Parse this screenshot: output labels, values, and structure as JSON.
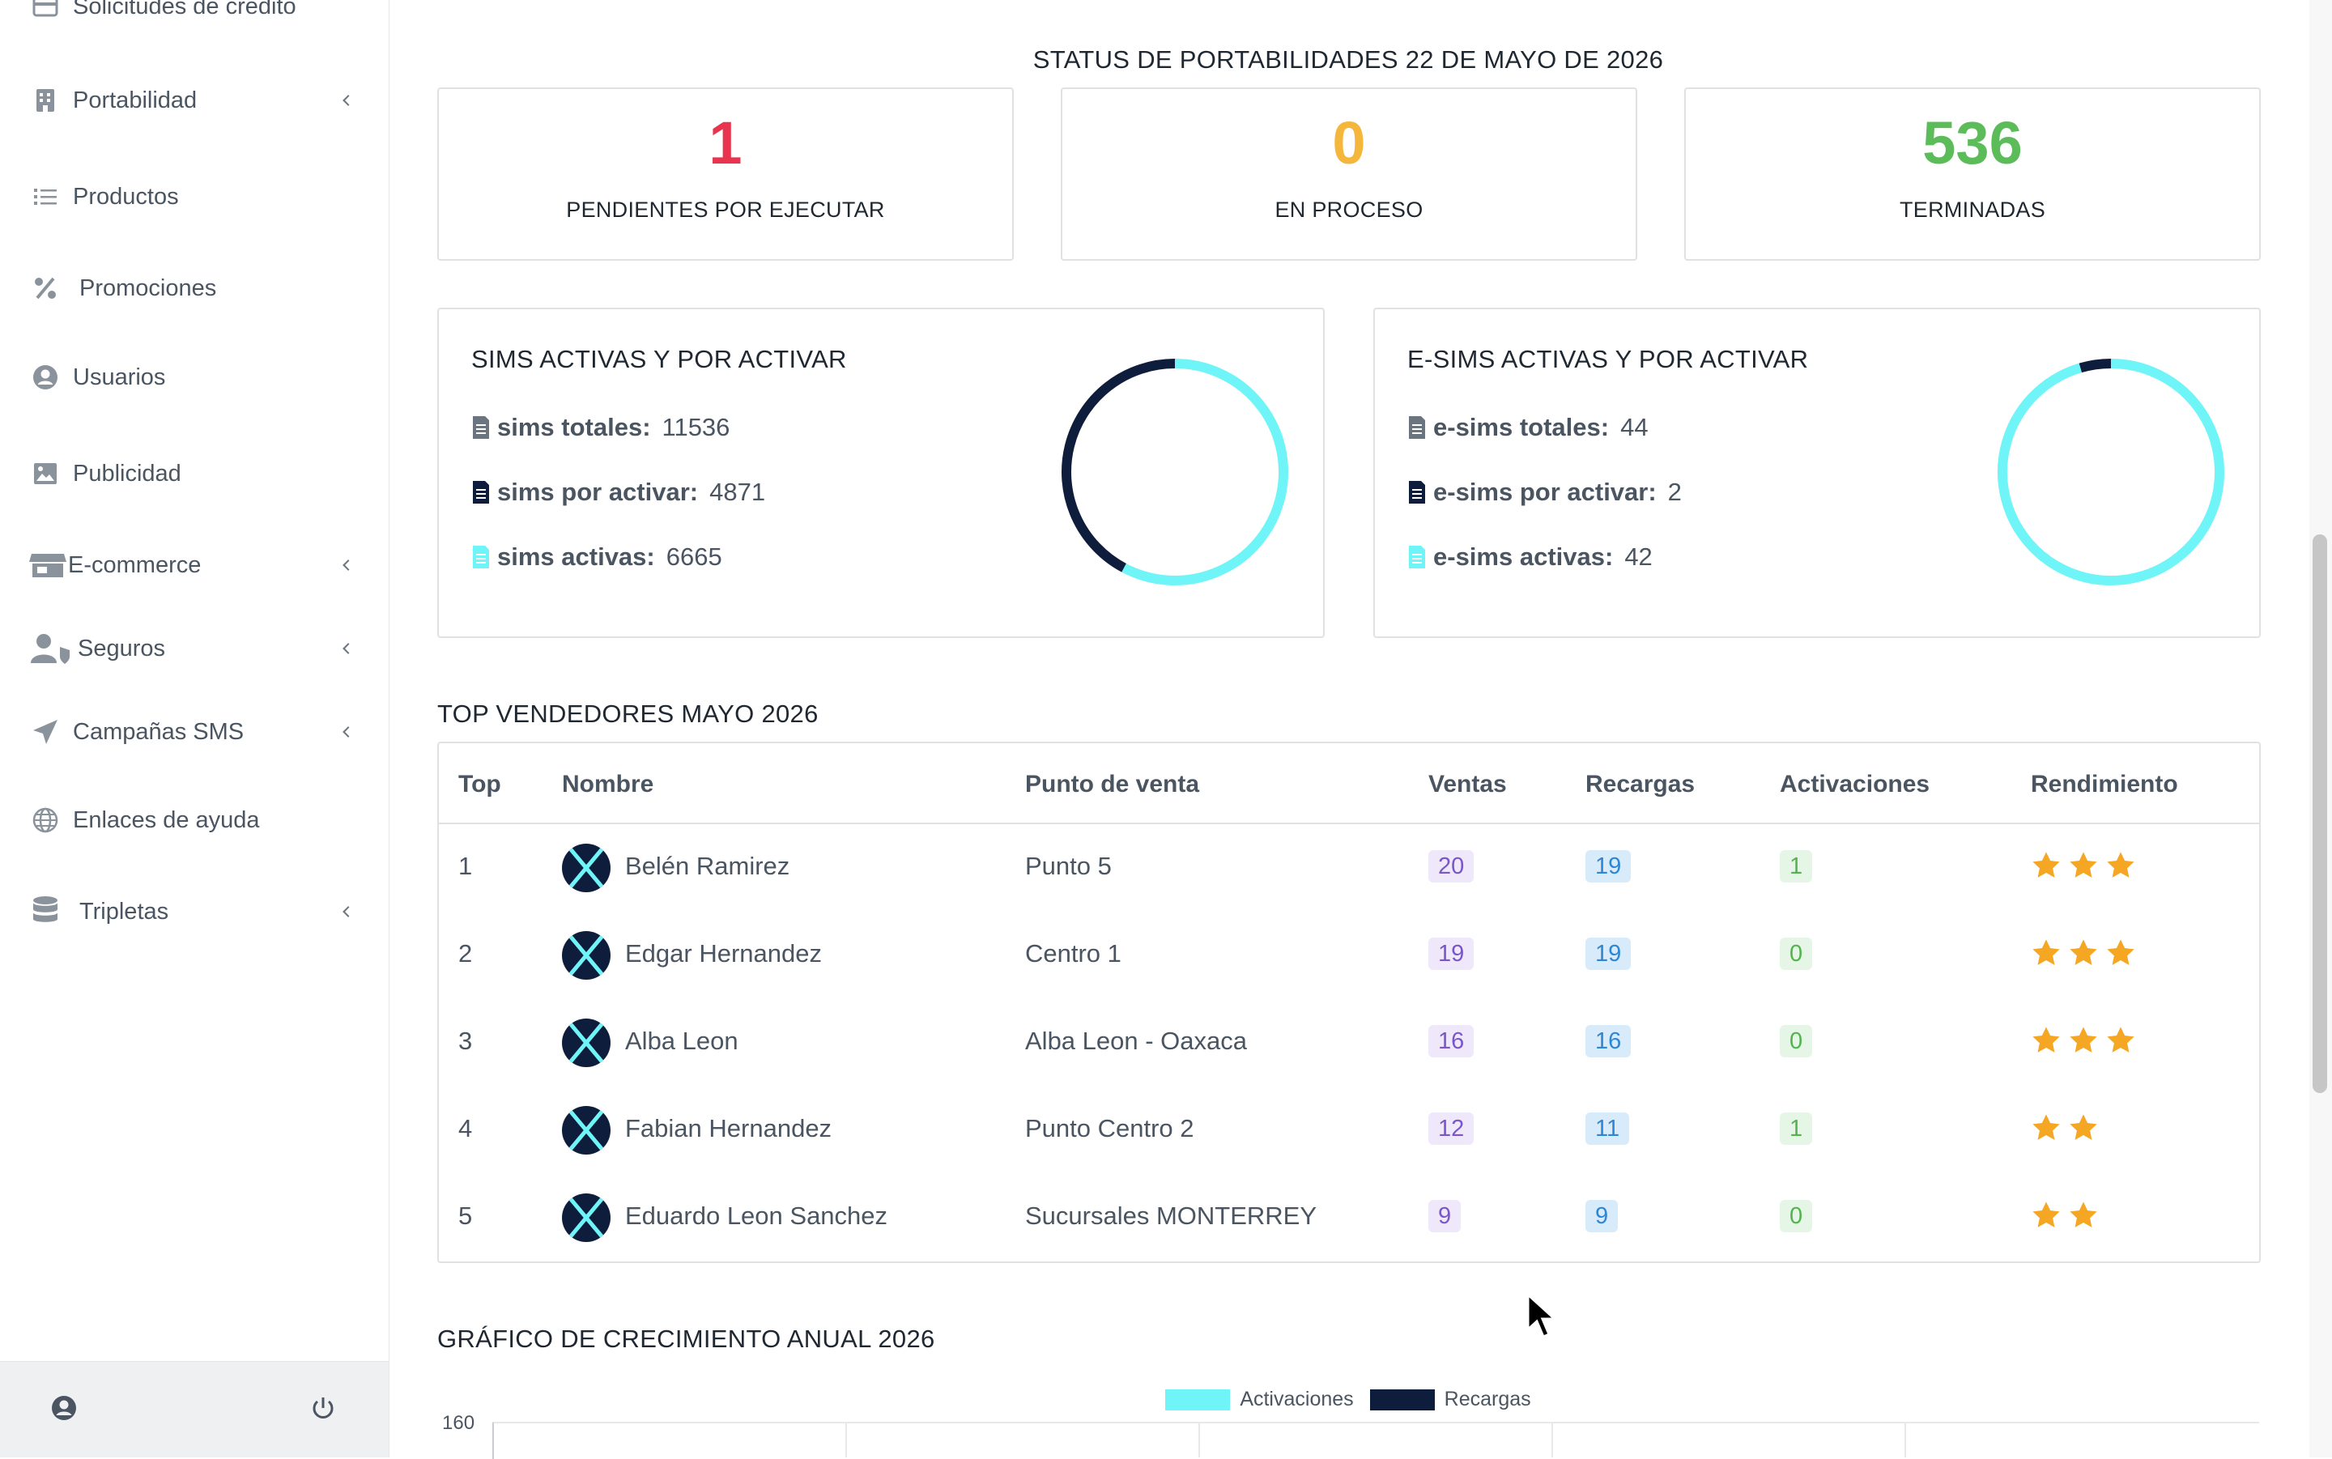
{
  "sidebar": {
    "partial_item": "Solicitudes de crédito",
    "items": [
      {
        "label": "Portabilidad",
        "icon": "building-icon",
        "has_submenu": true
      },
      {
        "label": "Productos",
        "icon": "list-icon",
        "has_submenu": false
      },
      {
        "label": "Promociones",
        "icon": "percent-icon",
        "has_submenu": false
      },
      {
        "label": "Usuarios",
        "icon": "user-circle-icon",
        "has_submenu": false
      },
      {
        "label": "Publicidad",
        "icon": "image-icon",
        "has_submenu": false
      },
      {
        "label": "E-commerce",
        "icon": "store-icon",
        "has_submenu": true
      },
      {
        "label": "Seguros",
        "icon": "user-shield-icon",
        "has_submenu": true
      },
      {
        "label": "Campañas SMS",
        "icon": "paper-plane-icon",
        "has_submenu": true
      },
      {
        "label": "Enlaces de ayuda",
        "icon": "globe-icon",
        "has_submenu": false
      },
      {
        "label": "Tripletas",
        "icon": "database-icon",
        "has_submenu": true
      }
    ],
    "footer": {
      "profile_icon": "user-circle-icon",
      "power_icon": "power-icon"
    }
  },
  "portabilidad": {
    "title": "STATUS DE PORTABILIDADES 22 DE MAYO DE 2026",
    "cards": [
      {
        "value": "1",
        "label": "PENDIENTES POR EJECUTAR",
        "color": "#e8344e"
      },
      {
        "value": "0",
        "label": "EN PROCESO",
        "color": "#f5b63c"
      },
      {
        "value": "536",
        "label": "TERMINADAS",
        "color": "#5cbc5a"
      }
    ]
  },
  "sims": {
    "title": "SIMS ACTIVAS Y POR ACTIVAR",
    "rows": [
      {
        "key": "sims totales:",
        "value": "11536",
        "icon_color": "#6b7580"
      },
      {
        "key": "sims por activar:",
        "value": "4871",
        "icon_color": "#0f1d3c"
      },
      {
        "key": "sims activas:",
        "value": "6665",
        "icon_color": "#6ff4f8"
      }
    ],
    "donut": {
      "por_activar": 4871,
      "activas": 6665,
      "colors": [
        "#0f1d3c",
        "#6ff4f8"
      ]
    }
  },
  "esims": {
    "title": "E-SIMS ACTIVAS Y POR ACTIVAR",
    "rows": [
      {
        "key": "e-sims totales:",
        "value": "44",
        "icon_color": "#6b7580"
      },
      {
        "key": "e-sims por activar:",
        "value": "2",
        "icon_color": "#0f1d3c"
      },
      {
        "key": "e-sims activas:",
        "value": "42",
        "icon_color": "#6ff4f8"
      }
    ],
    "donut": {
      "por_activar": 2,
      "activas": 42,
      "colors": [
        "#0f1d3c",
        "#6ff4f8"
      ]
    }
  },
  "top_vendedores": {
    "title": "TOP VENDEDORES MAYO 2026",
    "headers": [
      "Top",
      "Nombre",
      "Punto de venta",
      "Ventas",
      "Recargas",
      "Activaciones",
      "Rendimiento"
    ],
    "rows": [
      {
        "top": "1",
        "nombre": "Belén Ramirez",
        "punto": "Punto 5",
        "ventas": "20",
        "recargas": "19",
        "activaciones": "1",
        "stars": 3
      },
      {
        "top": "2",
        "nombre": "Edgar Hernandez",
        "punto": "Centro 1",
        "ventas": "19",
        "recargas": "19",
        "activaciones": "0",
        "stars": 3
      },
      {
        "top": "3",
        "nombre": "Alba Leon",
        "punto": "Alba Leon - Oaxaca",
        "ventas": "16",
        "recargas": "16",
        "activaciones": "0",
        "stars": 3
      },
      {
        "top": "4",
        "nombre": "Fabian Hernandez",
        "punto": "Punto Centro 2",
        "ventas": "12",
        "recargas": "11",
        "activaciones": "1",
        "stars": 2
      },
      {
        "top": "5",
        "nombre": "Eduardo Leon Sanchez",
        "punto": "Sucursales MONTERREY",
        "ventas": "9",
        "recargas": "9",
        "activaciones": "0",
        "stars": 2
      }
    ]
  },
  "crecimiento": {
    "title": "GRÁFICO DE CRECIMIENTO ANUAL 2026",
    "legend": [
      {
        "label": "Activaciones",
        "color": "#6ff4f8"
      },
      {
        "label": "Recargas",
        "color": "#0f1d3c"
      }
    ],
    "y_top_tick": "160"
  }
}
